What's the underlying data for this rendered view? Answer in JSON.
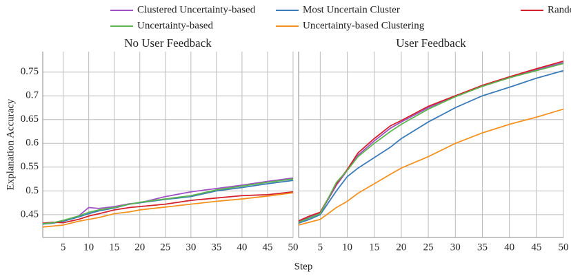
{
  "chart_data": [
    {
      "type": "line",
      "title": "No User Feedback",
      "y_label": "Explanation Accuracy",
      "x_label": "Step",
      "x": [
        1,
        3,
        5,
        8,
        10,
        12,
        15,
        18,
        20,
        25,
        30,
        35,
        40,
        45,
        50
      ],
      "xlim": [
        1,
        50
      ],
      "xticks": [
        5,
        10,
        15,
        20,
        25,
        30,
        35,
        40,
        45,
        50
      ],
      "ylim": [
        0.402,
        0.793
      ],
      "yticks": [
        0.45,
        0.5,
        0.55,
        0.6,
        0.65,
        0.7,
        0.75
      ],
      "grid": true,
      "series": [
        {
          "name": "Clustered Uncertainty-based",
          "color": "#a052c4",
          "values": [
            0.432,
            0.433,
            0.437,
            0.447,
            0.465,
            0.463,
            0.467,
            0.473,
            0.475,
            0.488,
            0.498,
            0.505,
            0.512,
            0.52,
            0.527
          ]
        },
        {
          "name": "Most Uncertain Cluster",
          "color": "#3a7bb8",
          "values": [
            0.43,
            0.432,
            0.436,
            0.445,
            0.452,
            0.458,
            0.464,
            0.472,
            0.475,
            0.482,
            0.488,
            0.5,
            0.507,
            0.515,
            0.522
          ]
        },
        {
          "name": "Random",
          "color": "#d4202c",
          "values": [
            0.432,
            0.434,
            0.433,
            0.44,
            0.447,
            0.452,
            0.46,
            0.465,
            0.467,
            0.472,
            0.48,
            0.485,
            0.49,
            0.492,
            0.498
          ]
        },
        {
          "name": "Uncertainty-based",
          "color": "#5cb54e",
          "values": [
            0.431,
            0.433,
            0.438,
            0.447,
            0.455,
            0.46,
            0.465,
            0.472,
            0.476,
            0.483,
            0.49,
            0.502,
            0.51,
            0.518,
            0.525
          ]
        },
        {
          "name": "Uncertainty-based Clustering",
          "color": "#f39220",
          "values": [
            0.424,
            0.426,
            0.428,
            0.436,
            0.44,
            0.444,
            0.452,
            0.456,
            0.46,
            0.466,
            0.472,
            0.478,
            0.483,
            0.489,
            0.496
          ]
        }
      ]
    },
    {
      "type": "line",
      "title": "User Feedback",
      "x": [
        1,
        3,
        5,
        8,
        10,
        12,
        15,
        18,
        20,
        25,
        30,
        35,
        40,
        45,
        50
      ],
      "xlim": [
        1,
        50
      ],
      "xticks": [
        5,
        10,
        15,
        20,
        25,
        30,
        35,
        40,
        45,
        50
      ],
      "ylim": [
        0.402,
        0.793
      ],
      "yticks": [
        0.45,
        0.5,
        0.55,
        0.6,
        0.65,
        0.7,
        0.75
      ],
      "grid": true,
      "series": [
        {
          "name": "Clustered Uncertainty-based",
          "color": "#a052c4",
          "values": [
            0.436,
            0.445,
            0.453,
            0.512,
            0.543,
            0.575,
            0.605,
            0.632,
            0.645,
            0.675,
            0.7,
            0.72,
            0.738,
            0.755,
            0.77
          ]
        },
        {
          "name": "Most Uncertain Cluster",
          "color": "#3a7bb8",
          "values": [
            0.432,
            0.44,
            0.45,
            0.5,
            0.53,
            0.548,
            0.57,
            0.592,
            0.61,
            0.645,
            0.675,
            0.7,
            0.718,
            0.737,
            0.753
          ]
        },
        {
          "name": "Random",
          "color": "#d4202c",
          "values": [
            0.437,
            0.447,
            0.455,
            0.515,
            0.545,
            0.58,
            0.61,
            0.637,
            0.648,
            0.678,
            0.7,
            0.722,
            0.74,
            0.757,
            0.773
          ]
        },
        {
          "name": "Uncertainty-based",
          "color": "#5cb54e",
          "values": [
            0.434,
            0.443,
            0.452,
            0.518,
            0.543,
            0.572,
            0.6,
            0.625,
            0.64,
            0.672,
            0.698,
            0.72,
            0.738,
            0.753,
            0.768
          ]
        },
        {
          "name": "Uncertainty-based Clustering",
          "color": "#f39220",
          "values": [
            0.428,
            0.434,
            0.44,
            0.465,
            0.478,
            0.495,
            0.515,
            0.535,
            0.548,
            0.572,
            0.6,
            0.622,
            0.64,
            0.655,
            0.672
          ]
        }
      ]
    }
  ]
}
